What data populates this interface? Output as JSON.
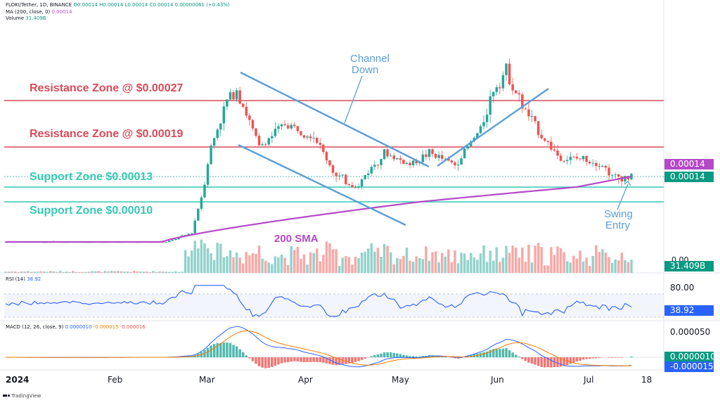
{
  "header": {
    "symbol": "FLOKI/Tether, 1D, BINANCE",
    "ohlc": "O0.00014 H0.00014 L0.00014 C0.00014 0.00000061 (+0.43%)",
    "ma_label": "MA (200, close, 0)",
    "ma_value": "0.00014",
    "volume_label": "Volume",
    "volume_value": "31.409B"
  },
  "annotations": {
    "resistance_1": "Resistance Zone @ $0.00027",
    "resistance_2": "Resistance Zone @ $0.00019",
    "support_1": "Support Zone $0.00013",
    "support_2": "Support Zone $0.00010",
    "channel": "Channel\nDown",
    "sma": "200 SMA",
    "swing": "Swing\nEntry"
  },
  "price_axis": {
    "price_tag_ma": "0.00014",
    "price_tag_close": "0.00014",
    "zero": "0.00",
    "volume_tag": "31.409B"
  },
  "rsi": {
    "label": "RSI (14)",
    "value_label": "38.92",
    "level_80": "80.00",
    "value_tag": "38.92"
  },
  "macd": {
    "label": "MACD (12, 26, close, 9)",
    "v1": "0.0000010",
    "v2": "-0.000015",
    "v3": "-0.000016",
    "axis_top": "0.000050",
    "tag_1": "0.0000010",
    "tag_2": "-0.000015"
  },
  "x_axis": {
    "months": [
      "2024",
      "Feb",
      "Mar",
      "Apr",
      "May",
      "Jun",
      "Jul",
      "18"
    ]
  },
  "footer": "TradingView",
  "colors": {
    "up": "#26a69a",
    "down": "#ef5350",
    "sma": "#b44ac8",
    "resistance": "#d94a5a",
    "support": "#34c9b4",
    "channel": "#5b9fd6",
    "rsi": "#2962ff",
    "macd_signal": "#f57c00"
  },
  "chart_data": {
    "type": "candlestick",
    "timeframe": "1D",
    "x_range": [
      "2024-01-01",
      "2024-07-18"
    ],
    "y_unit": "USDT",
    "horizontal_levels": [
      {
        "label": "Resistance Zone @ $0.00027",
        "value": 0.00027
      },
      {
        "label": "Resistance Zone @ $0.00019",
        "value": 0.00019
      },
      {
        "label": "Support Zone $0.00013",
        "value": 0.00013
      },
      {
        "label": "Support Zone $0.00010",
        "value": 0.0001
      }
    ],
    "price_path": [
      {
        "date": "2024-01-01",
        "close": 3.5e-05
      },
      {
        "date": "2024-01-15",
        "close": 3.4e-05
      },
      {
        "date": "2024-02-01",
        "close": 3.4e-05
      },
      {
        "date": "2024-02-20",
        "close": 3.4e-05
      },
      {
        "date": "2024-02-28",
        "close": 5e-05
      },
      {
        "date": "2024-03-02",
        "close": 0.00011
      },
      {
        "date": "2024-03-05",
        "close": 0.00019
      },
      {
        "date": "2024-03-10",
        "close": 0.00027
      },
      {
        "date": "2024-03-13",
        "close": 0.00029
      },
      {
        "date": "2024-03-20",
        "close": 0.00019
      },
      {
        "date": "2024-03-28",
        "close": 0.00023
      },
      {
        "date": "2024-04-06",
        "close": 0.00021
      },
      {
        "date": "2024-04-13",
        "close": 0.00014
      },
      {
        "date": "2024-04-20",
        "close": 0.00013
      },
      {
        "date": "2024-04-28",
        "close": 0.00018
      },
      {
        "date": "2024-05-06",
        "close": 0.00016
      },
      {
        "date": "2024-05-12",
        "close": 0.00018
      },
      {
        "date": "2024-05-20",
        "close": 0.00016
      },
      {
        "date": "2024-05-28",
        "close": 0.00022
      },
      {
        "date": "2024-06-01",
        "close": 0.00029
      },
      {
        "date": "2024-06-05",
        "close": 0.00032
      },
      {
        "date": "2024-06-10",
        "close": 0.00026
      },
      {
        "date": "2024-06-16",
        "close": 0.00021
      },
      {
        "date": "2024-06-22",
        "close": 0.00017
      },
      {
        "date": "2024-06-30",
        "close": 0.00017
      },
      {
        "date": "2024-07-05",
        "close": 0.00016
      },
      {
        "date": "2024-07-08",
        "close": 0.00014
      },
      {
        "date": "2024-07-14",
        "close": 0.00014
      }
    ],
    "sma_200": {
      "start": 3.5e-05,
      "end": 0.00014
    },
    "rsi_14_last": 38.92,
    "macd_last": {
      "macd": 1e-06,
      "signal": -1.5e-05,
      "hist": -1.6e-05
    }
  }
}
